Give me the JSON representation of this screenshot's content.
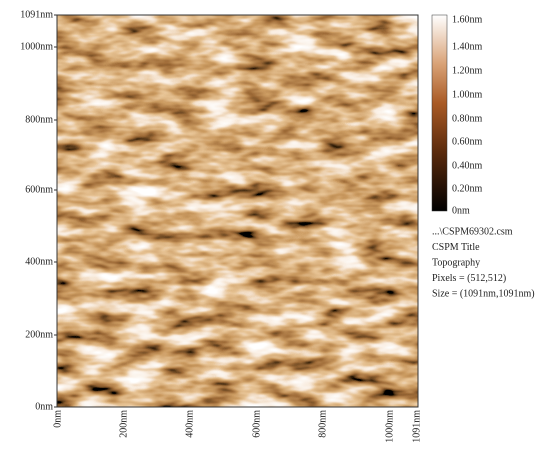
{
  "image": {
    "y_axis": {
      "labels": [
        "1091nm",
        "1000nm",
        "800nm",
        "600nm",
        "400nm",
        "200nm",
        "0nm"
      ]
    },
    "x_axis": {
      "labels": [
        "0nm",
        "200nm",
        "400nm",
        "600nm",
        "800nm",
        "1000nm",
        "1091nm"
      ]
    },
    "colorbar": {
      "labels": [
        "1.60nm",
        "1.40nm",
        "1.20nm",
        "1.00nm",
        "0.80nm",
        "0.60nm",
        "0.40nm",
        "0.20nm",
        "0nm"
      ]
    },
    "info": [
      "...\\CSPM69302.csm",
      "CSPM Title",
      "Topography",
      "Pixels = (512,512)",
      "Size = (1091nm,1091nm)"
    ]
  }
}
